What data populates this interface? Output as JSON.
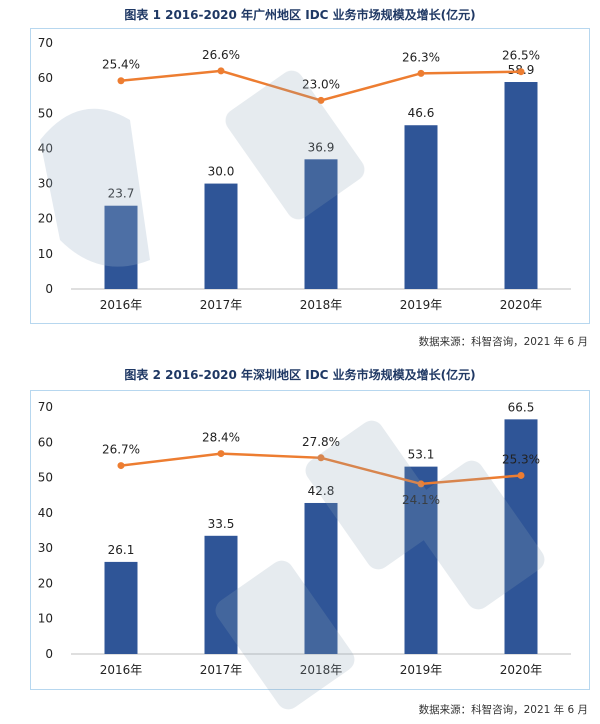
{
  "figures": [
    {
      "title": "图表 1 2016-2020 年广州地区 IDC 业务市场规模及增长(亿元)",
      "source": "数据来源：科智咨询，2021 年 6 月"
    },
    {
      "title": "图表 2 2016-2020 年深圳地区 IDC 业务市场规模及增长(亿元)",
      "source": "数据来源：科智咨询，2021 年 6 月"
    }
  ],
  "colors": {
    "bar": "#2f5597",
    "line": "#ed7d31",
    "axis": "#bfbfbf"
  },
  "chart_data": [
    {
      "type": "bar",
      "title": "图表 1 2016-2020 年广州地区 IDC 业务市场规模及增长(亿元)",
      "categories": [
        "2016年",
        "2017年",
        "2018年",
        "2019年",
        "2020年"
      ],
      "series": [
        {
          "values": [
            23.7,
            30.0,
            36.9,
            46.6,
            58.9
          ],
          "labels": [
            "23.7",
            "30.0",
            "36.9",
            "46.6",
            "58.9"
          ]
        },
        {
          "type": "line",
          "values": [
            25.4,
            26.6,
            23.0,
            26.3,
            26.5
          ],
          "labels": [
            "25.4%",
            "26.6%",
            "23.0%",
            "26.3%",
            "26.5%"
          ]
        }
      ],
      "y_ticks": [
        "0",
        "10",
        "20",
        "30",
        "40",
        "50",
        "60",
        "70"
      ],
      "ylim": [
        0,
        70
      ],
      "line_ylim": [
        0,
        30
      ],
      "grid": false,
      "legend": "none"
    },
    {
      "type": "bar",
      "title": "图表 2 2016-2020 年深圳地区 IDC 业务市场规模及增长(亿元)",
      "categories": [
        "2016年",
        "2017年",
        "2018年",
        "2019年",
        "2020年"
      ],
      "series": [
        {
          "values": [
            26.1,
            33.5,
            42.8,
            53.1,
            66.5
          ],
          "labels": [
            "26.1",
            "33.5",
            "42.8",
            "53.1",
            "66.5"
          ]
        },
        {
          "type": "line",
          "values": [
            26.7,
            28.4,
            27.8,
            24.1,
            25.3
          ],
          "labels": [
            "26.7%",
            "28.4%",
            "27.8%",
            "24.1%",
            "25.3%"
          ]
        }
      ],
      "y_ticks": [
        "0",
        "10",
        "20",
        "30",
        "40",
        "50",
        "60",
        "70"
      ],
      "ylim": [
        0,
        70
      ],
      "line_ylim": [
        0,
        35
      ],
      "grid": false,
      "legend": "none"
    }
  ]
}
